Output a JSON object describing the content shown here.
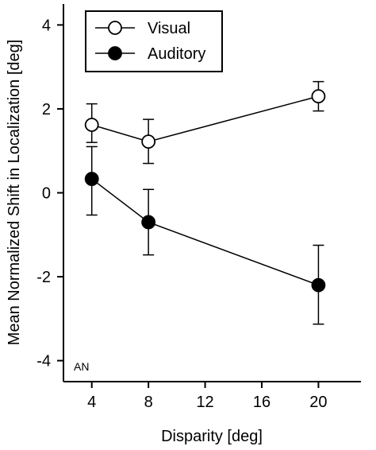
{
  "chart_data": {
    "type": "line",
    "xlabel": "Disparity [deg]",
    "ylabel": "Mean Normalized Shift in Localization [deg]",
    "xlim": [
      2,
      23
    ],
    "ylim": [
      -4.5,
      4.5
    ],
    "xticks": [
      4,
      8,
      12,
      16,
      20
    ],
    "yticks": [
      -4,
      -2,
      0,
      2,
      4
    ],
    "grid": false,
    "legend_position": "top-left",
    "panel_label": "AN",
    "series": [
      {
        "name": "Visual",
        "marker": "open-circle",
        "color": "#000000",
        "fill": "#ffffff",
        "x": [
          4,
          8,
          20
        ],
        "y": [
          1.62,
          1.22,
          2.3
        ],
        "err_upper": [
          2.12,
          1.75,
          2.65
        ],
        "err_lower": [
          1.2,
          0.7,
          1.95
        ]
      },
      {
        "name": "Auditory",
        "marker": "filled-circle",
        "color": "#000000",
        "fill": "#000000",
        "x": [
          4,
          8,
          20
        ],
        "y": [
          0.33,
          -0.7,
          -2.2
        ],
        "err_upper": [
          1.1,
          0.08,
          -1.25
        ],
        "err_lower": [
          -0.53,
          -1.48,
          -3.13
        ]
      }
    ]
  }
}
